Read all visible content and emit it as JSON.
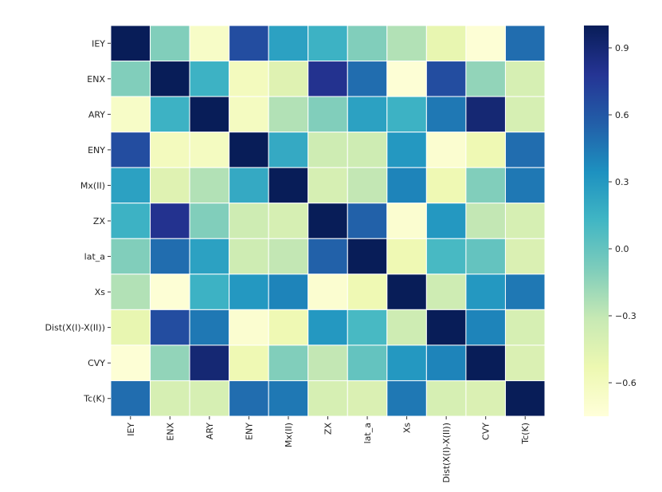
{
  "chart_data": {
    "type": "heatmap",
    "title": "",
    "xlabel": "",
    "ylabel": "",
    "x_categories": [
      "IEY",
      "ENX",
      "ARY",
      "ENY",
      "Mx(II)",
      "ZX",
      "lat_a",
      "Xs",
      "Dist(X(I)-X(II))",
      "CVY",
      "Tc(K)"
    ],
    "y_categories": [
      "IEY",
      "ENX",
      "ARY",
      "ENY",
      "Mx(II)",
      "ZX",
      "lat_a",
      "Xs",
      "Dist(X(I)-X(II))",
      "CVY",
      "Tc(K)"
    ],
    "values": [
      [
        1.0,
        -0.1,
        -0.65,
        0.65,
        0.25,
        0.15,
        -0.1,
        -0.25,
        -0.5,
        -0.73,
        0.5
      ],
      [
        -0.1,
        1.0,
        0.15,
        -0.6,
        -0.45,
        0.8,
        0.5,
        -0.73,
        0.65,
        -0.15,
        -0.4
      ],
      [
        -0.65,
        0.15,
        1.0,
        -0.62,
        -0.25,
        -0.1,
        0.25,
        0.15,
        0.45,
        0.9,
        -0.4
      ],
      [
        0.65,
        -0.6,
        -0.62,
        1.0,
        0.2,
        -0.35,
        -0.35,
        0.3,
        -0.7,
        -0.55,
        0.5
      ],
      [
        0.25,
        -0.45,
        -0.25,
        0.2,
        1.0,
        -0.4,
        -0.3,
        0.4,
        -0.55,
        -0.1,
        0.45
      ],
      [
        0.15,
        0.8,
        -0.1,
        -0.35,
        -0.4,
        1.0,
        0.55,
        -0.7,
        0.3,
        -0.3,
        -0.4
      ],
      [
        -0.1,
        0.5,
        0.25,
        -0.35,
        -0.3,
        0.55,
        1.0,
        -0.55,
        0.1,
        0.0,
        -0.42
      ],
      [
        -0.25,
        -0.73,
        0.15,
        0.3,
        0.4,
        -0.7,
        -0.55,
        1.0,
        -0.35,
        0.3,
        0.45
      ],
      [
        -0.5,
        0.65,
        0.45,
        -0.7,
        -0.55,
        0.3,
        0.1,
        -0.35,
        1.0,
        0.4,
        -0.4
      ],
      [
        -0.73,
        -0.15,
        0.9,
        -0.55,
        -0.1,
        -0.3,
        0.0,
        0.3,
        0.4,
        1.0,
        -0.42
      ],
      [
        0.5,
        -0.4,
        -0.4,
        0.5,
        0.45,
        -0.4,
        -0.42,
        0.45,
        -0.4,
        -0.42,
        1.0
      ]
    ],
    "vmin": -0.75,
    "vmax": 1.0,
    "colormap": "YlGnBu",
    "colorbar_ticks": [
      0.9,
      0.6,
      0.3,
      0.0,
      -0.3,
      -0.6
    ],
    "colorbar_tick_labels": [
      "0.9",
      "0.6",
      "0.3",
      "0.0",
      "−0.3",
      "−0.6"
    ],
    "cell_border_color": "#ffffff",
    "legend": "colorbar-right"
  }
}
